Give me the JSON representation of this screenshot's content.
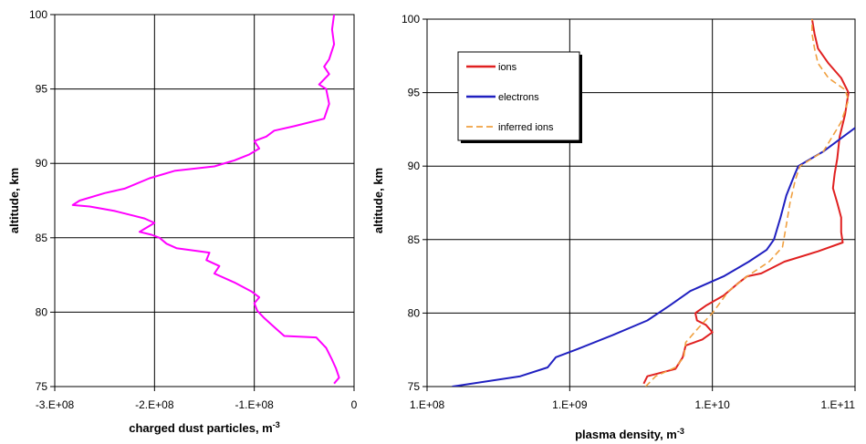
{
  "chart_data": [
    {
      "type": "line",
      "xlabel": "charged dust particles, m",
      "xlabel_sup": "-3",
      "ylabel": "altitude, km",
      "xlim": [
        -300000000,
        0
      ],
      "ylim": [
        75,
        100
      ],
      "x_tick_labels": [
        "-3.E+08",
        "-2.E+08",
        "-1.E+08",
        "0"
      ],
      "x_ticks": [
        -300000000,
        -200000000,
        -100000000,
        0
      ],
      "y_ticks": [
        75,
        80,
        85,
        90,
        95,
        100
      ],
      "y_tick_labels": [
        "75",
        "80",
        "85",
        "90",
        "95",
        "100"
      ],
      "grid": true,
      "legend": "none",
      "series": [
        {
          "color": "#ff00ff",
          "points": [
            [
              -20000000,
              75.2
            ],
            [
              -15000000,
              75.6
            ],
            [
              -18000000,
              76.2
            ],
            [
              -22000000,
              76.8
            ],
            [
              -28000000,
              77.6
            ],
            [
              -38000000,
              78.3
            ],
            [
              -70000000,
              78.4
            ],
            [
              -80000000,
              79.0
            ],
            [
              -90000000,
              79.6
            ],
            [
              -97000000,
              80.1
            ],
            [
              -100000000,
              80.6
            ],
            [
              -95000000,
              81.0
            ],
            [
              -103000000,
              81.4
            ],
            [
              -120000000,
              82.0
            ],
            [
              -140000000,
              82.6
            ],
            [
              -135000000,
              83.1
            ],
            [
              -148000000,
              83.5
            ],
            [
              -145000000,
              84.0
            ],
            [
              -178000000,
              84.3
            ],
            [
              -188000000,
              84.6
            ],
            [
              -195000000,
              85.0
            ],
            [
              -203000000,
              85.2
            ],
            [
              -215000000,
              85.4
            ],
            [
              -210000000,
              85.6
            ],
            [
              -200000000,
              86.0
            ],
            [
              -210000000,
              86.3
            ],
            [
              -222000000,
              86.5
            ],
            [
              -240000000,
              86.8
            ],
            [
              -265000000,
              87.1
            ],
            [
              -282000000,
              87.2
            ],
            [
              -275000000,
              87.5
            ],
            [
              -250000000,
              88.0
            ],
            [
              -230000000,
              88.3
            ],
            [
              -205000000,
              89.0
            ],
            [
              -180000000,
              89.5
            ],
            [
              -140000000,
              89.8
            ],
            [
              -120000000,
              90.2
            ],
            [
              -105000000,
              90.6
            ],
            [
              -95000000,
              91.0
            ],
            [
              -100000000,
              91.5
            ],
            [
              -88000000,
              91.8
            ],
            [
              -80000000,
              92.2
            ],
            [
              -60000000,
              92.5
            ],
            [
              -30000000,
              93.0
            ],
            [
              -25000000,
              94.0
            ],
            [
              -28000000,
              95.0
            ],
            [
              -35000000,
              95.3
            ],
            [
              -25000000,
              96.0
            ],
            [
              -30000000,
              96.5
            ],
            [
              -25000000,
              97.0
            ],
            [
              -20000000,
              98.0
            ],
            [
              -22000000,
              99.0
            ],
            [
              -20000000,
              100.0
            ]
          ]
        }
      ]
    },
    {
      "type": "line",
      "xlabel": "plasma density, m",
      "xlabel_sup": "-3",
      "ylabel": "altitude, km",
      "xscale": "log",
      "xlim": [
        100000000,
        100000000000
      ],
      "ylim": [
        75,
        100
      ],
      "x_tick_labels": [
        "1.E+08",
        "1.E+09",
        "1.E+10",
        "1.E+11"
      ],
      "x_ticks": [
        100000000,
        1000000000,
        10000000000,
        100000000000
      ],
      "y_ticks": [
        75,
        80,
        85,
        90,
        95,
        100
      ],
      "y_tick_labels": [
        "75",
        "80",
        "85",
        "90",
        "95",
        "100"
      ],
      "grid": true,
      "legend": "top-left",
      "series": [
        {
          "name": "ions",
          "color": "#e02020",
          "dash": false,
          "points": [
            [
              3300000000,
              75.2
            ],
            [
              3500000000,
              75.7
            ],
            [
              5500000000,
              76.2
            ],
            [
              6200000000,
              77.0
            ],
            [
              6500000000,
              77.8
            ],
            [
              8500000000,
              78.2
            ],
            [
              10000000000,
              78.7
            ],
            [
              9000000000,
              79.2
            ],
            [
              7800000000,
              79.5
            ],
            [
              7600000000,
              80.0
            ],
            [
              9000000000,
              80.5
            ],
            [
              12000000000,
              81.2
            ],
            [
              15000000000,
              82.0
            ],
            [
              17500000000,
              82.5
            ],
            [
              22000000000,
              82.7
            ],
            [
              32000000000,
              83.5
            ],
            [
              55000000000,
              84.2
            ],
            [
              82000000000,
              84.8
            ],
            [
              80000000000,
              85.5
            ],
            [
              80000000000,
              86.5
            ],
            [
              75000000000,
              87.5
            ],
            [
              70000000000,
              88.5
            ],
            [
              72000000000,
              89.5
            ],
            [
              75000000000,
              90.5
            ],
            [
              78000000000,
              92.0
            ],
            [
              85000000000,
              93.5
            ],
            [
              90000000000,
              95.0
            ],
            [
              80000000000,
              96.0
            ],
            [
              65000000000,
              97.0
            ],
            [
              55000000000,
              98.0
            ],
            [
              52000000000,
              99.0
            ],
            [
              50000000000,
              100.0
            ]
          ]
        },
        {
          "name": "electrons",
          "color": "#2020c0",
          "dash": false,
          "points": [
            [
              150000000,
              75.0
            ],
            [
              450000000,
              75.7
            ],
            [
              700000000,
              76.3
            ],
            [
              800000000,
              77.0
            ],
            [
              1100000000,
              77.5
            ],
            [
              2000000000,
              78.5
            ],
            [
              3500000000,
              79.5
            ],
            [
              5000000000,
              80.5
            ],
            [
              7000000000,
              81.5
            ],
            [
              12000000000,
              82.5
            ],
            [
              18000000000,
              83.5
            ],
            [
              24000000000,
              84.3
            ],
            [
              27000000000,
              85.0
            ],
            [
              30000000000,
              86.5
            ],
            [
              33000000000,
              88.0
            ],
            [
              38000000000,
              89.5
            ],
            [
              40000000000,
              90.0
            ],
            [
              60000000000,
              91.0
            ],
            [
              100000000000,
              92.6
            ]
          ]
        },
        {
          "name": "inferred ions",
          "color": "#f0a040",
          "dash": true,
          "points": [
            [
              3400000000,
              75.0
            ],
            [
              4000000000,
              75.7
            ],
            [
              5500000000,
              76.3
            ],
            [
              6300000000,
              77.0
            ],
            [
              6500000000,
              78.0
            ],
            [
              8000000000,
              79.0
            ],
            [
              10000000000,
              80.0
            ],
            [
              13000000000,
              81.5
            ],
            [
              17500000000,
              82.5
            ],
            [
              25000000000,
              83.5
            ],
            [
              31000000000,
              84.5
            ],
            [
              33000000000,
              86.0
            ],
            [
              35000000000,
              87.5
            ],
            [
              38000000000,
              89.0
            ],
            [
              41000000000,
              90.0
            ],
            [
              60000000000,
              91.0
            ],
            [
              80000000000,
              93.0
            ],
            [
              90000000000,
              94.5
            ],
            [
              85000000000,
              95.2
            ],
            [
              65000000000,
              96.0
            ],
            [
              55000000000,
              97.0
            ],
            [
              52000000000,
              98.0
            ],
            [
              50000000000,
              99.0
            ],
            [
              50000000000,
              100.0
            ]
          ]
        }
      ]
    }
  ]
}
